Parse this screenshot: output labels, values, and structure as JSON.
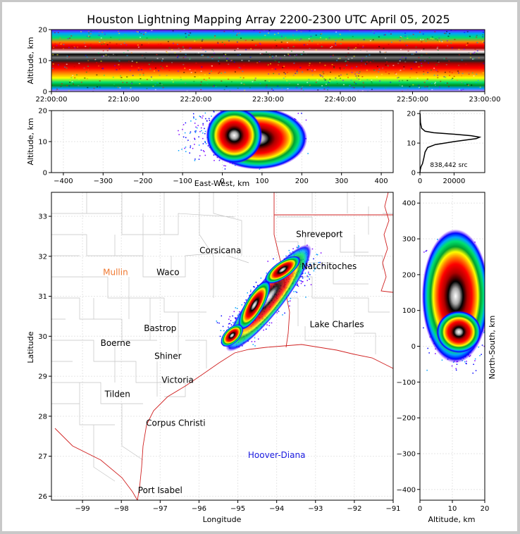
{
  "title": "Houston Lightning Mapping Array 2200-2300 UTC April 05, 2025",
  "colors": {
    "lma_scale": [
      "#7a00ff",
      "#0000ff",
      "#00a0ff",
      "#00e070",
      "#009020",
      "#ffff00",
      "#ff8000",
      "#ff0000",
      "#b00000",
      "#000000",
      "#888888",
      "#ffffff"
    ],
    "state_border": "#d02020",
    "county_border": "#bdbdbd",
    "density_curve": "#000000"
  },
  "chart_data": [
    {
      "id": "time-altitude",
      "type": "heatmap",
      "ylabel": "Altitude, km",
      "ylim": [
        0,
        20
      ],
      "yticks": [
        "0",
        "10",
        "20"
      ],
      "xticks": [
        "22:00:00",
        "22:10:00",
        "22:20:00",
        "22:30:00",
        "22:40:00",
        "22:50:00",
        "23:00:00"
      ],
      "x_range": [
        "22:00:00",
        "23:00:00"
      ],
      "peak_altitude_km": 12,
      "source_altitude_range_km": [
        2,
        20
      ]
    },
    {
      "id": "eastwest-altitude",
      "type": "heatmap",
      "xlabel": "East-West, km",
      "ylabel": "Altitude, km",
      "xlim": [
        -430,
        430
      ],
      "ylim": [
        0,
        20
      ],
      "xticks": [
        "−400",
        "−300",
        "−200",
        "−100",
        "0",
        "100",
        "200",
        "300",
        "400"
      ],
      "yticks": [
        "0",
        "10",
        "20"
      ],
      "core_x_km": 30,
      "core_altitude_km": 12,
      "extent_x_km": [
        -80,
        230
      ]
    },
    {
      "id": "altitude-histogram",
      "type": "line",
      "xlim": [
        0,
        38000
      ],
      "ylim": [
        0,
        21
      ],
      "xticks": [
        "0",
        "20000"
      ],
      "yticks": [
        "0",
        "10",
        "20"
      ],
      "annotation": "838,442 src",
      "points": [
        [
          0,
          0
        ],
        [
          200,
          1
        ],
        [
          600,
          2
        ],
        [
          1500,
          3
        ],
        [
          2300,
          5
        ],
        [
          3000,
          7
        ],
        [
          4500,
          8.5
        ],
        [
          9000,
          9.5
        ],
        [
          20000,
          10.5
        ],
        [
          33000,
          11.5
        ],
        [
          35000,
          12
        ],
        [
          30000,
          12.5
        ],
        [
          20000,
          13
        ],
        [
          8000,
          13.5
        ],
        [
          3000,
          14
        ],
        [
          1000,
          15
        ],
        [
          300,
          17
        ],
        [
          100,
          20
        ]
      ]
    },
    {
      "id": "plan-view",
      "type": "scatter",
      "xlabel": "Longitude",
      "ylabel": "Latitude",
      "xlim": [
        -99.8,
        -91
      ],
      "ylim": [
        25.9,
        33.6
      ],
      "xticks": [
        "−99",
        "−98",
        "−97",
        "−96",
        "−95",
        "−94",
        "−93",
        "−92",
        "−91"
      ],
      "yticks": [
        "26",
        "27",
        "28",
        "29",
        "30",
        "31",
        "32",
        "33"
      ],
      "cities": [
        {
          "name": "Shreveport",
          "lon": -92.9,
          "lat": 32.55,
          "color": "#000000"
        },
        {
          "name": "Corsicana",
          "lon": -95.45,
          "lat": 32.15,
          "color": "#000000"
        },
        {
          "name": "Natchitoches",
          "lon": -92.65,
          "lat": 31.75,
          "color": "#000000"
        },
        {
          "name": "Mullin",
          "lon": -98.15,
          "lat": 31.6,
          "color": "#f07830"
        },
        {
          "name": "Waco",
          "lon": -96.8,
          "lat": 31.6,
          "color": "#000000"
        },
        {
          "name": "Lake Charles",
          "lon": -92.45,
          "lat": 30.3,
          "color": "#000000"
        },
        {
          "name": "Bastrop",
          "lon": -97.0,
          "lat": 30.2,
          "color": "#000000"
        },
        {
          "name": "Boerne",
          "lon": -98.15,
          "lat": 29.83,
          "color": "#000000"
        },
        {
          "name": "Shiner",
          "lon": -96.8,
          "lat": 29.5,
          "color": "#000000"
        },
        {
          "name": "Victoria",
          "lon": -96.55,
          "lat": 28.9,
          "color": "#000000"
        },
        {
          "name": "Tilden",
          "lon": -98.1,
          "lat": 28.55,
          "color": "#000000"
        },
        {
          "name": "Corpus Christi",
          "lon": -96.6,
          "lat": 27.83,
          "color": "#000000"
        },
        {
          "name": "Hoover-Diana",
          "lon": -94.0,
          "lat": 27.03,
          "color": "#1a1ae0"
        },
        {
          "name": "Port Isabel",
          "lon": -97.0,
          "lat": 26.15,
          "color": "#000000"
        }
      ],
      "core_lon": -95.15,
      "core_lat": 30.02
    },
    {
      "id": "northsouth-altitude",
      "type": "heatmap",
      "xlabel": "Altitude, km",
      "ylabel": "North-South, km",
      "xlim": [
        0,
        20
      ],
      "ylim": [
        -430,
        430
      ],
      "xticks": [
        "0",
        "10",
        "20"
      ],
      "yticks": [
        "−400",
        "−300",
        "−200",
        "−100",
        "0",
        "100",
        "200",
        "300",
        "400"
      ],
      "core_y_km": 40,
      "core_altitude_km": 12,
      "extent_y_km": [
        -20,
        250
      ]
    }
  ]
}
